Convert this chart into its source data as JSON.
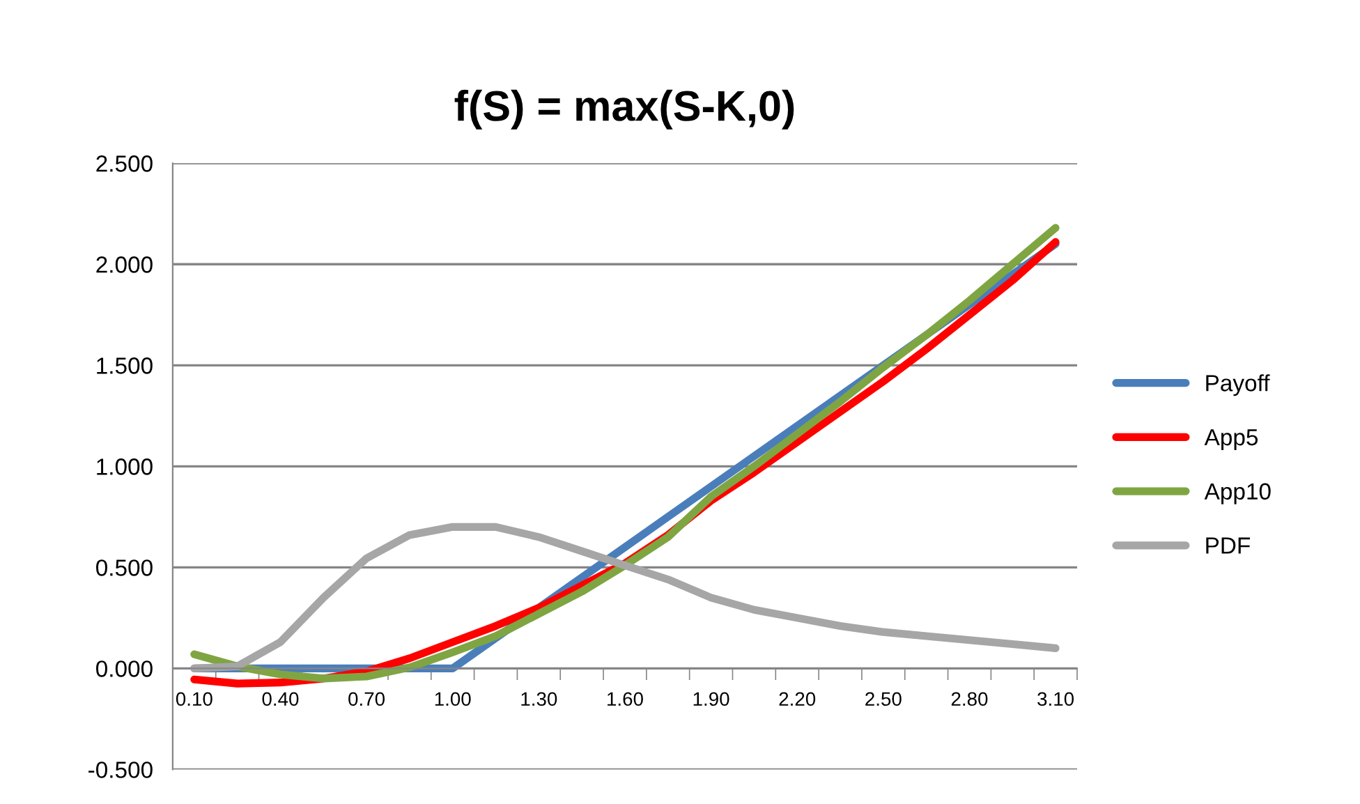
{
  "chart_data": {
    "type": "line",
    "title": "f(S) = max(S-K,0)",
    "categories": [
      "0.10",
      null,
      "0.40",
      null,
      "0.70",
      null,
      "1.00",
      null,
      "1.30",
      null,
      "1.60",
      null,
      "1.90",
      null,
      "2.20",
      null,
      "2.50",
      null,
      "2.80",
      null,
      "3.10"
    ],
    "series": [
      {
        "name": "Payoff",
        "color": "#4a7ebb",
        "values": [
          0,
          0,
          0,
          0,
          0,
          0,
          0,
          0.15,
          0.3,
          0.45,
          0.6,
          0.75,
          0.9,
          1.05,
          1.2,
          1.35,
          1.5,
          1.65,
          1.8,
          1.95,
          2.1
        ]
      },
      {
        "name": "App5",
        "color": "#ff0000",
        "values": [
          -0.055,
          -0.075,
          -0.07,
          -0.05,
          -0.015,
          0.05,
          0.13,
          0.21,
          0.3,
          0.41,
          0.52,
          0.66,
          0.83,
          0.97,
          1.12,
          1.27,
          1.42,
          1.58,
          1.75,
          1.92,
          2.11
        ]
      },
      {
        "name": "App10",
        "color": "#7fa543",
        "values": [
          0.07,
          0.01,
          -0.03,
          -0.05,
          -0.04,
          0.005,
          0.08,
          0.16,
          0.27,
          0.38,
          0.51,
          0.65,
          0.85,
          1.0,
          1.16,
          1.32,
          1.49,
          1.65,
          1.82,
          2.0,
          2.18
        ]
      },
      {
        "name": "PDF",
        "color": "#a6a6a6",
        "values": [
          0.0,
          0.01,
          0.13,
          0.35,
          0.545,
          0.66,
          0.7,
          0.7,
          0.65,
          0.58,
          0.51,
          0.44,
          0.35,
          0.29,
          0.25,
          0.21,
          0.18,
          0.16,
          0.14,
          0.12,
          0.1
        ]
      }
    ],
    "ylim": [
      -0.5,
      2.5
    ],
    "yticks": [
      {
        "value": -0.5,
        "label": "-0.500"
      },
      {
        "value": 0,
        "label": "0.000"
      },
      {
        "value": 0.5,
        "label": "0.500"
      },
      {
        "value": 1,
        "label": "1.000"
      },
      {
        "value": 1.5,
        "label": "1.500"
      },
      {
        "value": 2,
        "label": "2.000"
      },
      {
        "value": 2.5,
        "label": "2.500"
      }
    ],
    "grid": "y",
    "legend": "right",
    "marker": "none",
    "line_style": "solid"
  }
}
